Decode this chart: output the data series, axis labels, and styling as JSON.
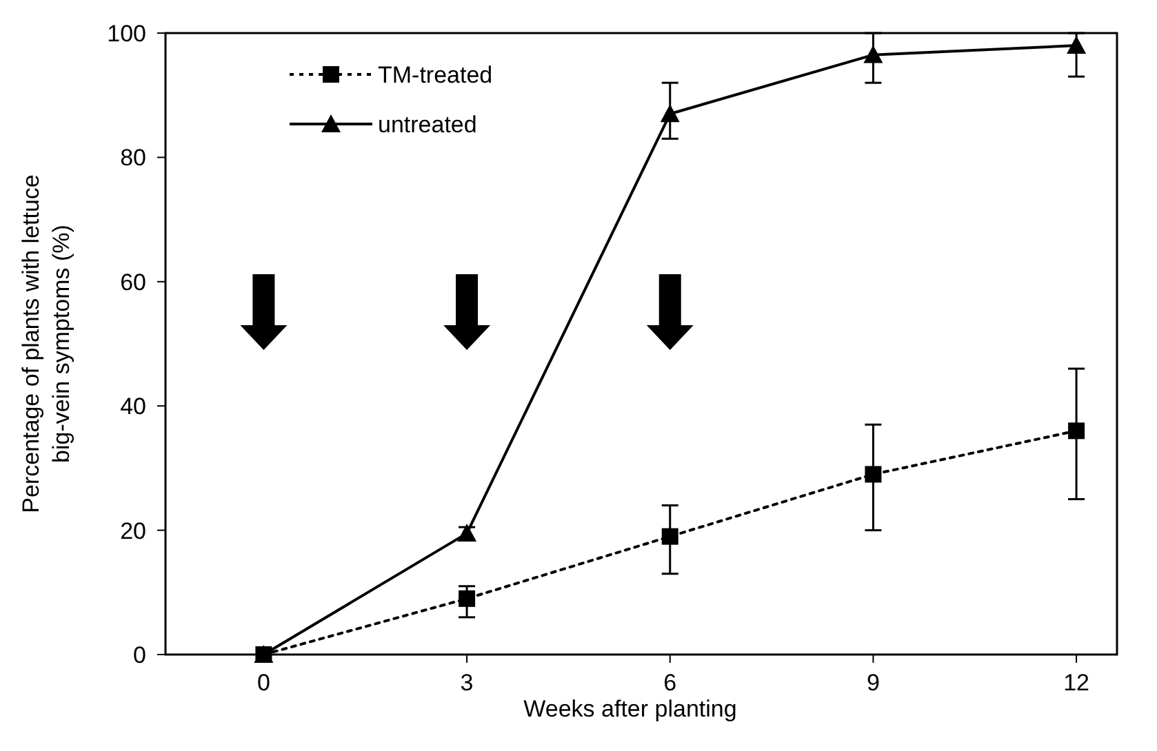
{
  "chart_data": {
    "type": "line",
    "xlabel": "Weeks after planting",
    "ylabel": "Percentage of plants with lettuce\nbig-vein symptoms  (%)",
    "x": [
      0,
      3,
      6,
      9,
      12
    ],
    "series": [
      {
        "name": "TM-treated",
        "color": "#000000",
        "values": [
          0,
          9,
          19,
          29,
          36
        ],
        "errors": [
          null,
          [
            6,
            11
          ],
          [
            13,
            24
          ],
          [
            20,
            37
          ],
          [
            25,
            46
          ]
        ],
        "marker": "square",
        "line_style": "dotted"
      },
      {
        "name": "untreated",
        "color": "#000000",
        "values": [
          0,
          19.5,
          87,
          96.5,
          98
        ],
        "errors": [
          null,
          [
            18.5,
            20.5
          ],
          [
            83,
            92
          ],
          [
            92,
            100
          ],
          [
            93,
            100
          ]
        ],
        "marker": "triangle",
        "line_style": "solid"
      }
    ],
    "xlim": [
      -1.45,
      12.6
    ],
    "xticks": [
      0,
      3,
      6,
      9,
      12
    ],
    "ylim": [
      0,
      100
    ],
    "yticks": [
      0,
      20,
      40,
      60,
      80,
      100
    ],
    "grid": false,
    "legend": "top left"
  }
}
